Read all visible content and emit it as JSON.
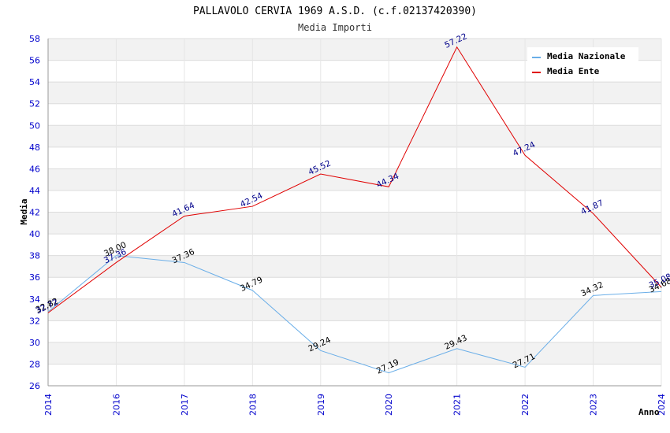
{
  "chart_data": {
    "type": "line",
    "title": "PALLAVOLO CERVIA 1969 A.S.D. (c.f.02137420390)",
    "subtitle": "Media Importi",
    "xlabel": "Anno",
    "ylabel": "Media",
    "ylim": [
      26,
      58
    ],
    "ytick_step": 2,
    "grid": true,
    "legend_position": "top-right",
    "x": [
      "2014",
      "2016",
      "2017",
      "2018",
      "2019",
      "2020",
      "2021",
      "2022",
      "2023",
      "2024"
    ],
    "series": [
      {
        "name": "Media Nazionale",
        "color": "#6aaee8",
        "label_color": "#000000",
        "values": [
          32.82,
          38.0,
          37.36,
          34.79,
          29.24,
          27.19,
          29.43,
          27.71,
          34.32,
          34.68
        ],
        "labels": [
          "32.82",
          "38.00",
          "37.36",
          "34.79",
          "29.24",
          "27.19",
          "29.43",
          "27.71",
          "34.32",
          "34.68"
        ]
      },
      {
        "name": "Media Ente",
        "color": "#e00000",
        "label_color": "#00008b",
        "values": [
          32.72,
          37.36,
          41.64,
          42.54,
          45.52,
          44.34,
          57.22,
          47.24,
          41.87,
          35.08
        ],
        "labels": [
          "32.72",
          "37.36",
          "41.64",
          "42.54",
          "45.52",
          "44.34",
          "57.22",
          "47.24",
          "41.87",
          "35.08"
        ]
      }
    ]
  }
}
